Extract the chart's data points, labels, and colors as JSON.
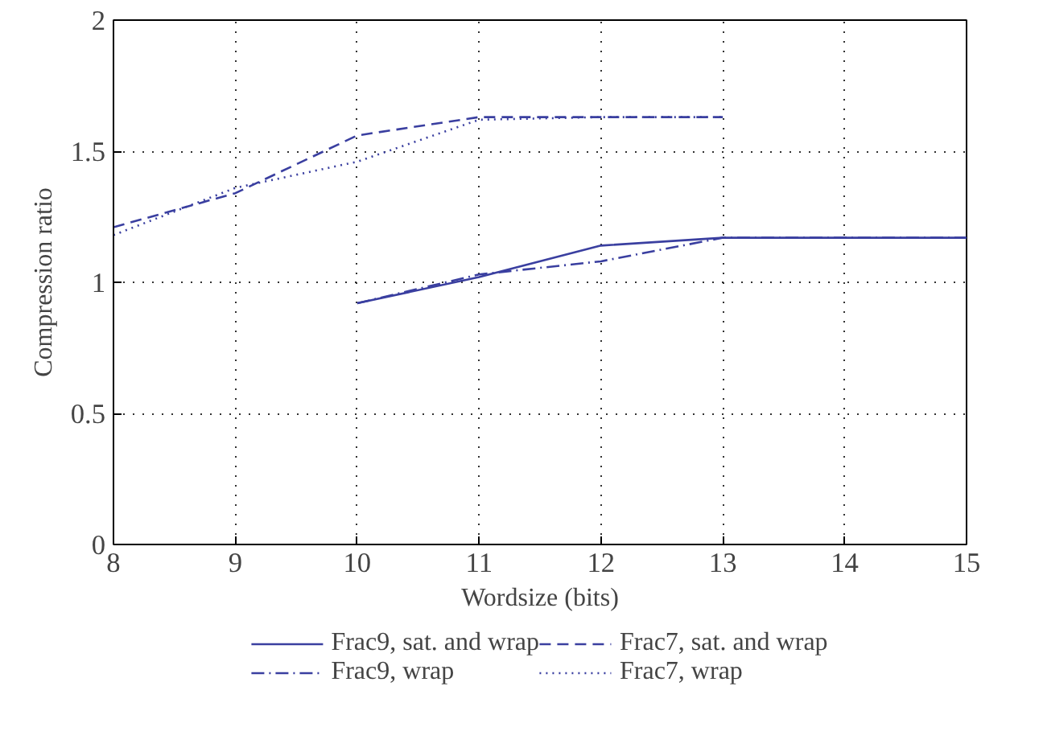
{
  "chart_data": {
    "type": "line",
    "xlabel": "Wordsize (bits)",
    "ylabel": "Compression ratio",
    "x": [
      8,
      9,
      10,
      11,
      12,
      13,
      14,
      15
    ],
    "series": [
      {
        "name": "Frac9, sat. and wrap",
        "color": "#3a3fa0",
        "line_style": "solid",
        "values": [
          null,
          null,
          0.92,
          1.02,
          1.14,
          1.17,
          1.17,
          1.17
        ]
      },
      {
        "name": "Frac9, wrap",
        "color": "#3a3fa0",
        "line_style": "dashdot",
        "values": [
          null,
          null,
          0.92,
          1.03,
          1.08,
          1.17,
          1.17,
          1.17
        ]
      },
      {
        "name": "Frac7, sat. and wrap",
        "color": "#3a3fa0",
        "line_style": "dashed",
        "values": [
          1.21,
          1.34,
          1.56,
          1.63,
          1.63,
          1.63,
          null,
          null
        ]
      },
      {
        "name": "Frac7, wrap",
        "color": "#3a3fa0",
        "line_style": "dotted",
        "values": [
          1.18,
          1.36,
          1.46,
          1.62,
          1.63,
          1.63,
          null,
          null
        ]
      }
    ],
    "xlim": [
      8,
      15
    ],
    "ylim": [
      0,
      2
    ],
    "xticks": [
      8,
      9,
      10,
      11,
      12,
      13,
      14,
      15
    ],
    "yticks": [
      0,
      0.5,
      1,
      1.5,
      2
    ],
    "grid": true,
    "legend": "bottom",
    "marker": "none"
  }
}
